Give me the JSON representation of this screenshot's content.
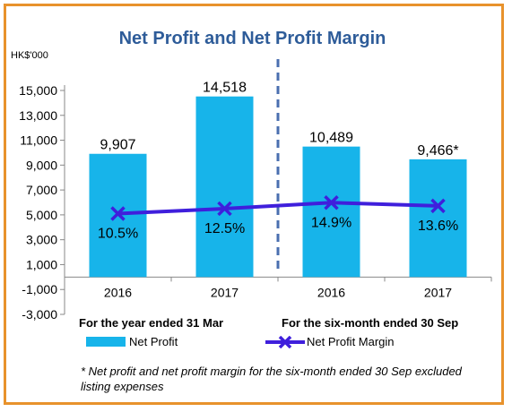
{
  "chart_data": {
    "type": "bar+line",
    "title": "Net Profit and Net Profit Margin",
    "y_unit": "HK$'000",
    "ylim": [
      -3000,
      15000
    ],
    "yticks": [
      -3000,
      -1000,
      1000,
      3000,
      5000,
      7000,
      9000,
      11000,
      13000,
      15000
    ],
    "ytick_labels": [
      "-3,000",
      "-1,000",
      "1,000",
      "3,000",
      "5,000",
      "7,000",
      "9,000",
      "11,000",
      "13,000",
      "15,000"
    ],
    "categories": [
      "2016",
      "2017",
      "2016",
      "2017"
    ],
    "groups": [
      "For the year ended 31 Mar",
      "For the six-month ended 30 Sep"
    ],
    "series": [
      {
        "name": "Net Profit",
        "type": "bar",
        "values": [
          9907,
          14518,
          10489,
          9466
        ],
        "labels": [
          "9,907",
          "14,518",
          "10,489",
          "9,466*"
        ],
        "color": "#17b4ea"
      },
      {
        "name": "Net Profit Margin",
        "type": "line",
        "values": [
          10.5,
          12.5,
          14.9,
          13.6
        ],
        "labels": [
          "10.5%",
          "12.5%",
          "14.9%",
          "13.6%"
        ],
        "color": "#3f1fdc"
      }
    ],
    "footnote": "* Net profit and net profit margin for the six-month ended 30 Sep excluded listing expenses",
    "grid": false,
    "legend": "bottom"
  }
}
